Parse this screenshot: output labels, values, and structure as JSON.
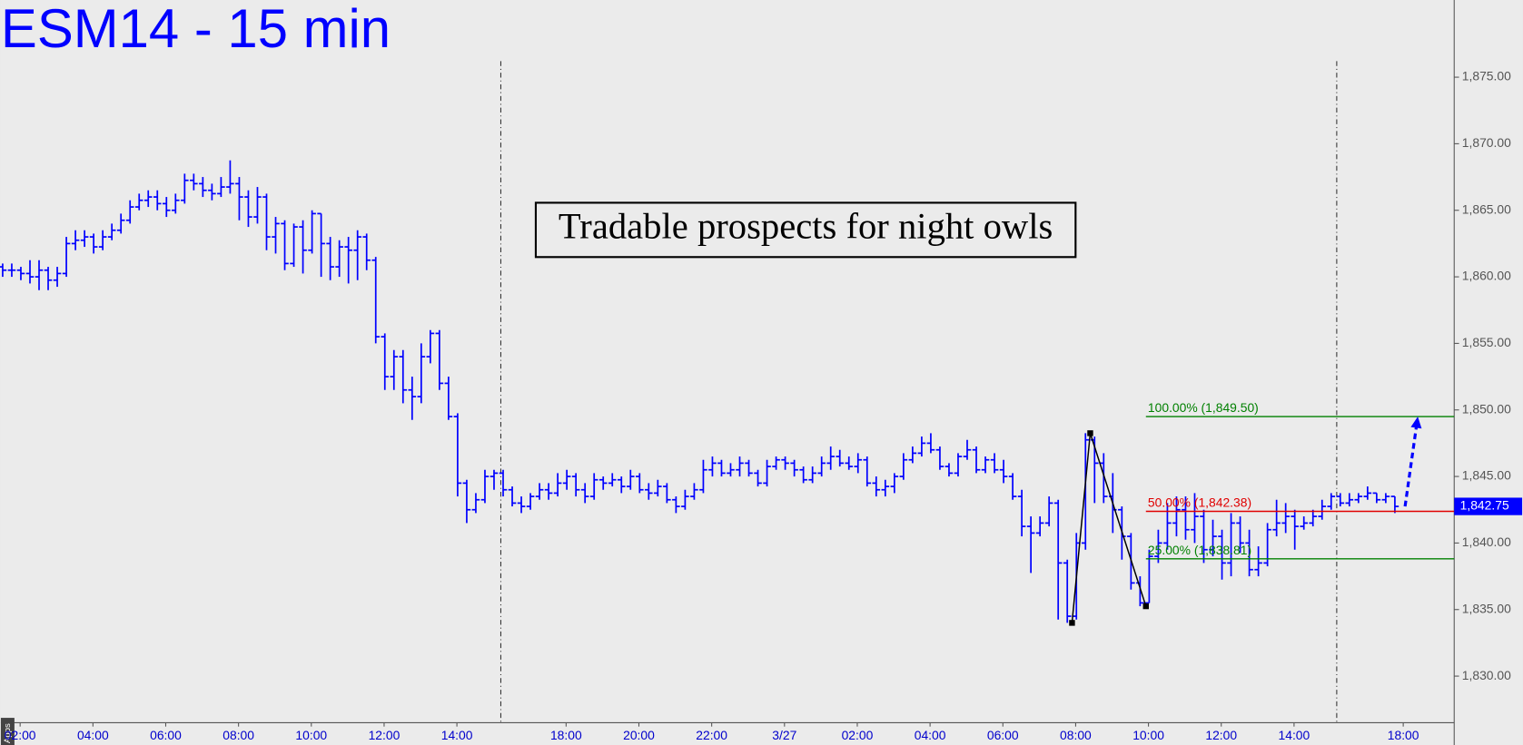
{
  "chart_data": {
    "type": "ohlc",
    "title": "ESM14 - 15 min",
    "annotation": "Tradable prospects for night owls",
    "corner_label": "Apps",
    "color": "#0000ff",
    "x": [
      1.52,
      1.77,
      2.02,
      2.27,
      2.52,
      2.77,
      3.02,
      3.27,
      3.52,
      3.77,
      4.02,
      4.27,
      4.52,
      4.77,
      5.02,
      5.27,
      5.52,
      5.77,
      6.02,
      6.27,
      6.52,
      6.77,
      7.02,
      7.27,
      7.52,
      7.77,
      8.02,
      8.27,
      8.52,
      8.77,
      9.02,
      9.27,
      9.52,
      9.77,
      10.02,
      10.27,
      10.52,
      10.77,
      11.02,
      11.27,
      11.52,
      11.77,
      12.02,
      12.27,
      12.52,
      12.77,
      13.02,
      13.27,
      13.52,
      13.77,
      14.02,
      14.27,
      14.52,
      14.77,
      15.02,
      15.27,
      15.52,
      15.77,
      16.02,
      16.27,
      16.52,
      16.77,
      17.02,
      17.27,
      17.52,
      17.77,
      18.02,
      18.27,
      18.52,
      18.77,
      19.02,
      19.27,
      19.52,
      19.77,
      20.02,
      20.27,
      20.52,
      20.77,
      21.02,
      21.27,
      21.52,
      21.77,
      22.02,
      22.27,
      22.52,
      22.77,
      23.02,
      23.27,
      23.52,
      23.77,
      24.02,
      24.27,
      24.52,
      24.77,
      25.02,
      25.27,
      25.52,
      25.77,
      26.02,
      26.27,
      26.52,
      26.77,
      27.02,
      27.27,
      27.52,
      27.77,
      28.02,
      28.27,
      28.52,
      28.77,
      29.02,
      29.27,
      29.52,
      29.77,
      30.02,
      30.27,
      30.52,
      30.77,
      31.02,
      31.27,
      31.52,
      31.77,
      32.02,
      32.27,
      32.52,
      32.77,
      33.02,
      33.27,
      33.52,
      33.77,
      34.02,
      34.27,
      34.52,
      34.77,
      35.02,
      35.27,
      35.52,
      35.77,
      36.02,
      36.27,
      36.52,
      36.77,
      37.02,
      37.27,
      37.52,
      37.77,
      38.02,
      38.27,
      38.52,
      38.77,
      39.02,
      39.27,
      39.52,
      39.77
    ],
    "open": [
      1860.75,
      1860.5,
      1860.5,
      1860.25,
      1860.0,
      1860.5,
      1859.75,
      1860.25,
      1862.5,
      1862.75,
      1863.0,
      1862.25,
      1863.0,
      1863.5,
      1864.25,
      1865.25,
      1865.75,
      1866.0,
      1865.5,
      1865.0,
      1865.75,
      1867.25,
      1867.0,
      1866.5,
      1866.25,
      1866.75,
      1867.0,
      1866.0,
      1864.5,
      1866.0,
      1863.0,
      1864.0,
      1861.0,
      1863.75,
      1862.0,
      1864.75,
      1862.5,
      1860.75,
      1862.25,
      1862.0,
      1863.0,
      1861.25,
      1855.5,
      1852.5,
      1854.0,
      1851.5,
      1851.0,
      1854.0,
      1855.75,
      1852.0,
      1849.5,
      1844.5,
      1842.5,
      1843.25,
      1845.0,
      1845.25,
      1844.0,
      1843.0,
      1842.75,
      1843.5,
      1844.0,
      1843.75,
      1844.5,
      1845.0,
      1844.0,
      1843.5,
      1844.75,
      1844.5,
      1844.75,
      1844.25,
      1845.0,
      1844.0,
      1843.75,
      1844.25,
      1843.25,
      1842.75,
      1843.5,
      1844.0,
      1845.5,
      1846.0,
      1845.25,
      1845.5,
      1846.0,
      1845.25,
      1844.5,
      1845.75,
      1846.25,
      1846.0,
      1845.5,
      1844.75,
      1845.25,
      1846.0,
      1846.5,
      1846.0,
      1845.75,
      1846.25,
      1844.5,
      1844.0,
      1844.25,
      1845.0,
      1846.25,
      1846.75,
      1847.5,
      1847.0,
      1845.75,
      1845.25,
      1846.5,
      1847.0,
      1845.5,
      1846.25,
      1845.5,
      1845.0,
      1843.5,
      1841.25,
      1840.75,
      1841.5,
      1843.0,
      1838.5,
      1834.5,
      1840.0,
      1847.75,
      1846.0,
      1843.5,
      1842.5,
      1840.5,
      1837.0,
      1835.5,
      1839.0,
      1840.0,
      1841.5,
      1842.5,
      1841.0,
      1842.0,
      1839.5,
      1840.5,
      1838.5,
      1841.5,
      1840.0,
      1838.0,
      1838.5,
      1841.0,
      1841.5,
      1842.0,
      1841.25,
      1841.5,
      1842.0,
      1842.75,
      1843.5,
      1843.0,
      1843.25,
      1843.5,
      1843.75,
      1843.25,
      1843.5
    ],
    "high": [
      1861.0,
      1861.0,
      1860.75,
      1861.25,
      1861.25,
      1860.75,
      1860.75,
      1863.0,
      1863.5,
      1863.5,
      1863.25,
      1863.5,
      1864.0,
      1864.75,
      1865.75,
      1866.25,
      1866.5,
      1866.5,
      1866.0,
      1866.25,
      1867.75,
      1867.75,
      1867.5,
      1867.0,
      1867.5,
      1868.75,
      1867.5,
      1866.5,
      1866.75,
      1866.25,
      1864.5,
      1864.25,
      1864.0,
      1864.25,
      1865.0,
      1864.75,
      1863.0,
      1862.75,
      1863.0,
      1863.5,
      1863.25,
      1861.5,
      1855.75,
      1854.5,
      1854.5,
      1852.5,
      1855.0,
      1856.0,
      1856.0,
      1852.5,
      1849.75,
      1844.75,
      1843.75,
      1845.5,
      1845.5,
      1845.5,
      1844.25,
      1843.5,
      1843.75,
      1844.5,
      1844.5,
      1845.25,
      1845.5,
      1845.25,
      1844.5,
      1845.25,
      1845.0,
      1845.25,
      1845.0,
      1845.5,
      1845.25,
      1844.5,
      1844.75,
      1844.5,
      1843.5,
      1844.0,
      1844.5,
      1846.25,
      1846.5,
      1846.25,
      1846.0,
      1846.5,
      1846.25,
      1845.5,
      1846.25,
      1846.5,
      1846.5,
      1846.25,
      1845.75,
      1845.75,
      1846.5,
      1847.25,
      1847.0,
      1846.5,
      1846.75,
      1846.5,
      1845.0,
      1844.75,
      1845.25,
      1846.75,
      1847.25,
      1848.0,
      1848.25,
      1847.25,
      1846.0,
      1846.75,
      1847.75,
      1847.25,
      1846.5,
      1846.75,
      1846.25,
      1845.25,
      1844.0,
      1842.0,
      1842.0,
      1843.5,
      1843.25,
      1838.75,
      1840.75,
      1848.25,
      1848.0,
      1846.75,
      1845.25,
      1842.75,
      1840.75,
      1837.5,
      1839.5,
      1841.0,
      1843.0,
      1843.5,
      1843.5,
      1843.75,
      1842.5,
      1841.75,
      1841.0,
      1842.25,
      1842.0,
      1841.0,
      1839.75,
      1841.5,
      1843.25,
      1843.0,
      1842.5,
      1842.0,
      1842.5,
      1843.25,
      1843.75,
      1843.75,
      1843.75,
      1843.75,
      1844.25,
      1843.75,
      1843.75,
      1843.5
    ],
    "low": [
      1860.0,
      1860.0,
      1859.75,
      1859.5,
      1859.0,
      1859.0,
      1859.25,
      1860.0,
      1862.0,
      1862.25,
      1861.75,
      1862.0,
      1862.75,
      1863.25,
      1864.0,
      1865.0,
      1865.25,
      1865.0,
      1864.5,
      1864.75,
      1865.5,
      1866.5,
      1866.0,
      1865.75,
      1866.0,
      1866.25,
      1864.25,
      1863.75,
      1864.0,
      1862.0,
      1861.75,
      1860.5,
      1860.75,
      1860.25,
      1861.75,
      1860.0,
      1859.75,
      1860.0,
      1859.5,
      1859.75,
      1860.5,
      1855.0,
      1851.5,
      1851.5,
      1850.5,
      1849.25,
      1850.5,
      1853.5,
      1851.5,
      1849.25,
      1843.5,
      1841.5,
      1842.25,
      1843.0,
      1844.0,
      1843.5,
      1842.75,
      1842.25,
      1842.5,
      1843.25,
      1843.25,
      1843.5,
      1844.0,
      1843.5,
      1843.0,
      1843.25,
      1844.0,
      1844.25,
      1843.75,
      1844.0,
      1843.75,
      1843.25,
      1843.5,
      1843.0,
      1842.25,
      1842.5,
      1843.25,
      1843.75,
      1845.0,
      1845.0,
      1845.0,
      1845.0,
      1845.0,
      1844.25,
      1844.25,
      1845.5,
      1845.5,
      1845.0,
      1844.5,
      1844.5,
      1845.0,
      1845.5,
      1845.75,
      1845.5,
      1845.25,
      1844.25,
      1843.5,
      1843.5,
      1843.75,
      1844.75,
      1846.0,
      1846.5,
      1846.75,
      1845.5,
      1845.0,
      1845.0,
      1846.25,
      1845.25,
      1845.25,
      1845.25,
      1844.5,
      1843.25,
      1840.5,
      1837.75,
      1840.5,
      1841.25,
      1834.25,
      1834.0,
      1834.25,
      1839.5,
      1843.0,
      1843.0,
      1840.75,
      1838.75,
      1836.5,
      1835.25,
      1835.5,
      1838.5,
      1839.5,
      1840.5,
      1840.25,
      1840.0,
      1838.5,
      1839.0,
      1837.25,
      1837.5,
      1839.25,
      1837.5,
      1837.5,
      1838.25,
      1840.5,
      1840.75,
      1839.5,
      1841.0,
      1841.25,
      1841.75,
      1842.5,
      1842.75,
      1842.75,
      1843.0,
      1843.25,
      1843.0,
      1843.0,
      1842.25
    ],
    "close": [
      1860.5,
      1860.5,
      1860.25,
      1860.0,
      1860.5,
      1859.75,
      1860.25,
      1862.5,
      1862.75,
      1863.0,
      1862.25,
      1863.0,
      1863.5,
      1864.25,
      1865.25,
      1865.75,
      1866.0,
      1865.5,
      1865.0,
      1865.75,
      1867.25,
      1867.0,
      1866.5,
      1866.25,
      1866.75,
      1867.0,
      1866.0,
      1864.5,
      1866.0,
      1863.0,
      1864.0,
      1861.0,
      1863.75,
      1862.0,
      1864.75,
      1862.5,
      1860.75,
      1862.25,
      1862.0,
      1863.0,
      1861.25,
      1855.5,
      1852.5,
      1854.0,
      1851.5,
      1851.0,
      1854.0,
      1855.75,
      1852.0,
      1849.5,
      1844.5,
      1842.5,
      1843.25,
      1845.0,
      1845.25,
      1844.0,
      1843.0,
      1842.75,
      1843.5,
      1844.0,
      1843.75,
      1844.5,
      1845.0,
      1844.0,
      1843.5,
      1844.75,
      1844.5,
      1844.75,
      1844.25,
      1845.0,
      1844.0,
      1843.75,
      1844.25,
      1843.25,
      1842.75,
      1843.5,
      1844.0,
      1845.5,
      1846.0,
      1845.25,
      1845.5,
      1846.0,
      1845.25,
      1844.5,
      1845.75,
      1846.25,
      1846.0,
      1845.5,
      1844.75,
      1845.25,
      1846.0,
      1846.5,
      1846.0,
      1845.75,
      1846.25,
      1844.5,
      1844.0,
      1844.25,
      1845.0,
      1846.25,
      1846.75,
      1847.5,
      1847.0,
      1845.75,
      1845.25,
      1846.5,
      1847.0,
      1845.5,
      1846.25,
      1845.5,
      1845.0,
      1843.5,
      1841.25,
      1840.75,
      1841.5,
      1843.0,
      1838.5,
      1834.5,
      1840.0,
      1847.75,
      1846.0,
      1843.5,
      1842.5,
      1840.5,
      1837.0,
      1835.5,
      1839.0,
      1840.0,
      1841.5,
      1842.5,
      1841.0,
      1842.0,
      1839.5,
      1840.5,
      1838.5,
      1841.5,
      1840.0,
      1838.0,
      1838.5,
      1841.0,
      1841.5,
      1842.0,
      1841.25,
      1841.5,
      1842.0,
      1842.75,
      1843.5,
      1843.0,
      1843.25,
      1843.5,
      1843.75,
      1843.25,
      1843.5,
      1842.75
    ],
    "xlim": [
      1.47,
      41.4
    ],
    "ylim": [
      1826.5,
      1880.8
    ],
    "xticks": [
      {
        "value": 2,
        "label": "02:00"
      },
      {
        "value": 4,
        "label": "04:00"
      },
      {
        "value": 6,
        "label": "06:00"
      },
      {
        "value": 8,
        "label": "08:00"
      },
      {
        "value": 10,
        "label": "10:00"
      },
      {
        "value": 12,
        "label": "12:00"
      },
      {
        "value": 14,
        "label": "14:00"
      },
      {
        "value": 17,
        "label": "18:00"
      },
      {
        "value": 19,
        "label": "20:00"
      },
      {
        "value": 21,
        "label": "22:00"
      },
      {
        "value": 23,
        "label": "3/27"
      },
      {
        "value": 25,
        "label": "02:00"
      },
      {
        "value": 27,
        "label": "04:00"
      },
      {
        "value": 29,
        "label": "06:00"
      },
      {
        "value": 31,
        "label": "08:00"
      },
      {
        "value": 33,
        "label": "10:00"
      },
      {
        "value": 35,
        "label": "12:00"
      },
      {
        "value": 37,
        "label": "14:00"
      },
      {
        "value": 40,
        "label": "18:00"
      }
    ],
    "yticks": [
      {
        "value": 1830,
        "label": "1,830.00"
      },
      {
        "value": 1835,
        "label": "1,835.00"
      },
      {
        "value": 1840,
        "label": "1,840.00"
      },
      {
        "value": 1845,
        "label": "1,845.00"
      },
      {
        "value": 1850,
        "label": "1,850.00"
      },
      {
        "value": 1855,
        "label": "1,855.00"
      },
      {
        "value": 1860,
        "label": "1,860.00"
      },
      {
        "value": 1865,
        "label": "1,865.00"
      },
      {
        "value": 1870,
        "label": "1,870.00"
      },
      {
        "value": 1875,
        "label": "1,875.00"
      }
    ],
    "levels": [
      {
        "label": "100.00% (1,849.50)",
        "value": 1849.5,
        "color": "#008000",
        "start": 32.93
      },
      {
        "label": "50.00% (1,842.38)",
        "value": 1842.38,
        "color": "#e00000",
        "start": 32.93
      },
      {
        "label": "25.00% (1,838.81)",
        "value": 1838.81,
        "color": "#008000",
        "start": 32.93
      }
    ],
    "zigzag": {
      "x": [
        30.9,
        31.4,
        32.93
      ],
      "y": [
        1834.0,
        1848.25,
        1835.25
      ],
      "color": "#000000"
    },
    "arrow": {
      "x": [
        40.05,
        40.4
      ],
      "y": [
        1842.75,
        1849.5
      ],
      "color": "#0000ff"
    },
    "last": {
      "value": 1842.75,
      "label": "1,842.75",
      "color": "#0000ff"
    }
  }
}
